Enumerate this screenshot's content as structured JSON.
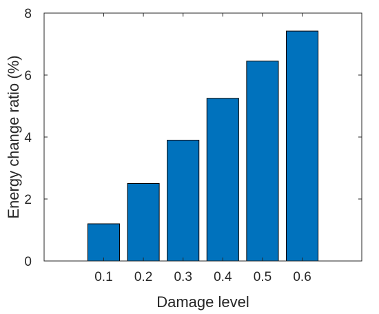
{
  "chart_data": {
    "type": "bar",
    "title": "",
    "xlabel": "Damage level",
    "ylabel": "Energy change ratio (%)",
    "categories": [
      "0.1",
      "0.2",
      "0.3",
      "0.4",
      "0.5",
      "0.6"
    ],
    "values": [
      1.2,
      2.5,
      3.9,
      5.25,
      6.45,
      7.42
    ],
    "ylim": [
      0,
      8
    ],
    "yticks": [
      "0",
      "2",
      "4",
      "6",
      "8"
    ],
    "grid": false,
    "legend": "none",
    "bar_color": "#0072BD",
    "bar_edge_color": "#000000",
    "axis_color": "#262626"
  }
}
